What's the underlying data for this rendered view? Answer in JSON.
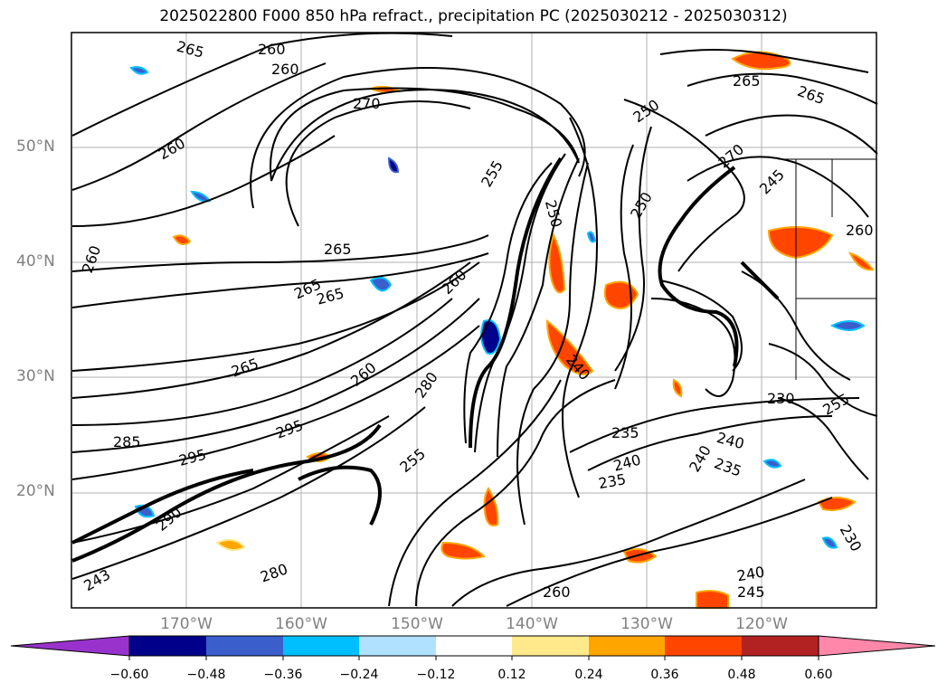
{
  "title": "2025022800 F000 850 hPa refract., precipitation PC (2025030212 - 2025030312)",
  "lat_labels": [
    "50°N",
    "40°N",
    "30°N",
    "20°N"
  ],
  "lon_labels": [
    "170°W",
    "160°W",
    "150°W",
    "140°W",
    "130°W",
    "120°W"
  ],
  "colorbar": {
    "ticks": [
      "−0.60",
      "−0.48",
      "−0.36",
      "−0.24",
      "−0.12",
      "0.12",
      "0.24",
      "0.36",
      "0.48",
      "0.60"
    ],
    "colors": [
      "#9932cc",
      "#00008b",
      "#3a5fcd",
      "#00bfff",
      "#b0e2ff",
      "#ffffff",
      "#ffe98a",
      "#ffa500",
      "#ff4500",
      "#b22222",
      "#ff88aa"
    ]
  },
  "contour_labels": [
    "265",
    "260",
    "265",
    "260",
    "260",
    "270",
    "255",
    "250",
    "265",
    "265",
    "265",
    "260",
    "265",
    "260",
    "265",
    "280",
    "295",
    "285",
    "295",
    "290",
    "260",
    "255",
    "240",
    "235",
    "240",
    "240",
    "235",
    "230",
    "240",
    "230",
    "235",
    "240",
    "270",
    "250",
    "260",
    "245",
    "255",
    "280",
    "243",
    "250",
    "260",
    "245"
  ],
  "map": {
    "lat_range": [
      10,
      60
    ],
    "lon_range": [
      -180,
      -110
    ],
    "gridlines": true
  }
}
